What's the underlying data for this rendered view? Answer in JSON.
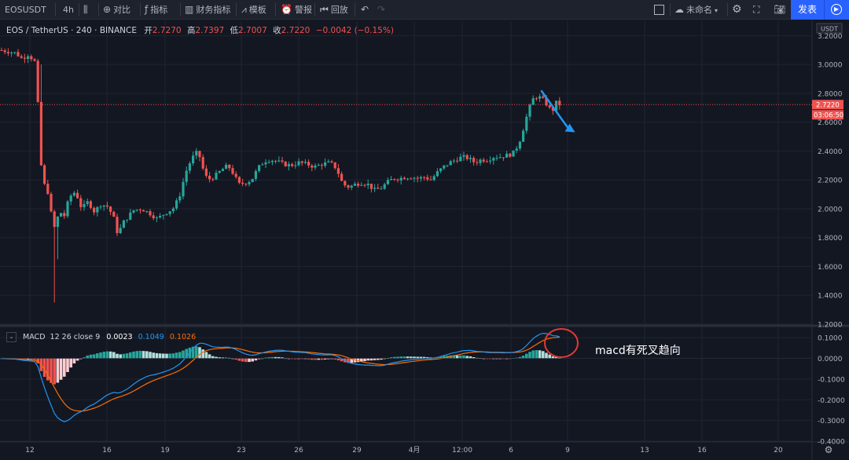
{
  "toolbar": {
    "symbol": "EOSUSDT",
    "interval": "4h",
    "compare": "对比",
    "indicators": "指标",
    "financials": "财务指标",
    "templates": "模板",
    "alert": "警报",
    "replay": "回放",
    "layout_name": "未命名",
    "publish": "发表",
    "icons": [
      "bar-style-icon",
      "compare-plus-icon",
      "indicator-fx-icon",
      "financial-icon",
      "template-icon",
      "alert-icon",
      "replay-icon",
      "undo-icon",
      "redo-icon",
      "layout-square-icon",
      "cloud-icon",
      "settings-gear-icon",
      "fullscreen-icon",
      "camera-icon",
      "play-icon"
    ]
  },
  "legend": {
    "title": "EOS / TetherUS · 240 · BINANCE",
    "open_label": "开",
    "open": "2.7270",
    "high_label": "高",
    "high": "2.7397",
    "low_label": "低",
    "low": "2.7007",
    "close_label": "收",
    "close": "2.7220",
    "change": "−0.0042 (−0.15%)"
  },
  "macd_legend": {
    "name": "MACD",
    "params": "12 26 close 9",
    "hist": "0.0023",
    "macd": "0.1049",
    "signal": "0.1026"
  },
  "annotation": "macd有死叉趋向",
  "colors": {
    "background": "#131722",
    "up": "#26a69a",
    "down": "#ef5350",
    "macd_line": "#2196f3",
    "signal_line": "#ff6d00",
    "arrow": "#2196f3",
    "circle": "#e53935",
    "price_line": "#ef5350"
  },
  "chart_data": [
    {
      "type": "candlestick",
      "title": "EOS / TetherUS · 240 · BINANCE",
      "currency": "USDT",
      "ylim": [
        1.2,
        3.3
      ],
      "y_ticks": [
        "3.2000",
        "3.0000",
        "2.8000",
        "2.6000",
        "2.4000",
        "2.2000",
        "2.0000",
        "1.8000",
        "1.6000",
        "1.4000",
        "1.2000"
      ],
      "x_ticks": [
        "12",
        "16",
        "19",
        "23",
        "26",
        "29",
        "4月",
        "12:00",
        "6",
        "9",
        "13",
        "16",
        "20"
      ],
      "last_price": "2.7220",
      "countdown": "03:06:50",
      "grid": true,
      "series_description": "Price drops sharply from ~3.10 to ~1.35 on day 12-13, recovers to ~2.0, consolidates 2.2-2.4, then rallies to ~2.78 before easing to 2.72",
      "arrow_annotation": {
        "from": [
          7.6,
          2.82
        ],
        "to": [
          9.4,
          2.53
        ],
        "meaning": "expected decline"
      }
    },
    {
      "type": "macd",
      "params": "12 26 close 9",
      "ylim": [
        -0.4,
        0.15
      ],
      "y_ticks": [
        "0.1000",
        "0.0000",
        "-0.1000",
        "-0.2000",
        "-0.3000",
        "-0.4000"
      ],
      "last": {
        "histogram": 0.0023,
        "macd": 0.1049,
        "signal": 0.1026
      }
    }
  ]
}
